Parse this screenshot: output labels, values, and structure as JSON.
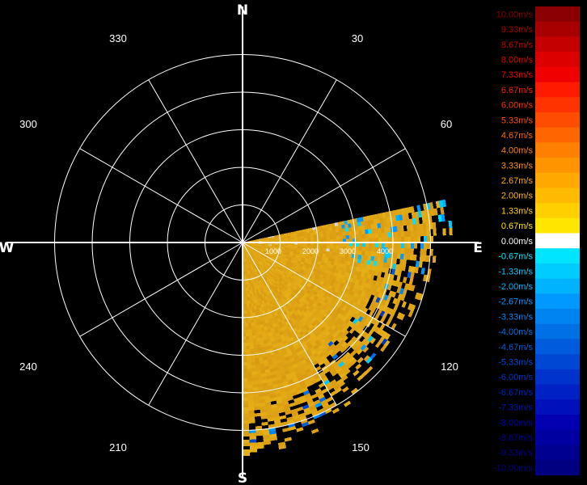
{
  "chart_data": {
    "type": "heatmap",
    "subtype": "polar-ppi-radial-velocity",
    "cardinal_labels": [
      "N",
      "E",
      "S",
      "W"
    ],
    "azimuth_labels": [
      "30",
      "60",
      "120",
      "150",
      "210",
      "240",
      "300",
      "330"
    ],
    "range_labels": [
      "1000",
      "2000",
      "3000",
      "4000"
    ],
    "sector_deg": [
      78,
      180
    ],
    "dominant_value_range_ms": [
      1.33,
      2.67
    ],
    "legend": {
      "unit": "m/s",
      "entries": [
        {
          "label": "10.00m/s",
          "value": 10.0,
          "color": "#8b0000"
        },
        {
          "label": "9.33m/s",
          "value": 9.33,
          "color": "#a80000"
        },
        {
          "label": "8.67m/s",
          "value": 8.67,
          "color": "#c40000"
        },
        {
          "label": "8.00m/s",
          "value": 8.0,
          "color": "#dc0000"
        },
        {
          "label": "7.33m/s",
          "value": 7.33,
          "color": "#f00000"
        },
        {
          "label": "6.67m/s",
          "value": 6.67,
          "color": "#ff1a00"
        },
        {
          "label": "6.00m/s",
          "value": 6.0,
          "color": "#ff3300"
        },
        {
          "label": "5.33m/s",
          "value": 5.33,
          "color": "#ff4d00"
        },
        {
          "label": "4.67m/s",
          "value": 4.67,
          "color": "#ff6600"
        },
        {
          "label": "4.00m/s",
          "value": 4.0,
          "color": "#ff8000"
        },
        {
          "label": "3.33m/s",
          "value": 3.33,
          "color": "#ff9400"
        },
        {
          "label": "2.67m/s",
          "value": 2.67,
          "color": "#ffa800"
        },
        {
          "label": "2.00m/s",
          "value": 2.0,
          "color": "#ffbb00"
        },
        {
          "label": "1.33m/s",
          "value": 1.33,
          "color": "#ffcf00"
        },
        {
          "label": "0.67m/s",
          "value": 0.67,
          "color": "#ffe600"
        },
        {
          "label": "0.00m/s",
          "value": 0.0,
          "color": "#ffffff"
        },
        {
          "label": "-0.67m/s",
          "value": -0.67,
          "color": "#00e5ff"
        },
        {
          "label": "-1.33m/s",
          "value": -1.33,
          "color": "#00ccff"
        },
        {
          "label": "-2.00m/s",
          "value": -2.0,
          "color": "#00b3ff"
        },
        {
          "label": "-2.67m/s",
          "value": -2.67,
          "color": "#0099ff"
        },
        {
          "label": "-3.33m/s",
          "value": -3.33,
          "color": "#0085f0"
        },
        {
          "label": "-4.00m/s",
          "value": -4.0,
          "color": "#0070e6"
        },
        {
          "label": "-4.67m/s",
          "value": -4.67,
          "color": "#005cdc"
        },
        {
          "label": "-5.33m/s",
          "value": -5.33,
          "color": "#0048d4"
        },
        {
          "label": "-6.00m/s",
          "value": -6.0,
          "color": "#0033cc"
        },
        {
          "label": "-6.67m/s",
          "value": -6.67,
          "color": "#0022c4"
        },
        {
          "label": "-7.33m/s",
          "value": -7.33,
          "color": "#0011bb"
        },
        {
          "label": "-8.00m/s",
          "value": -8.0,
          "color": "#0000b0"
        },
        {
          "label": "-8.67m/s",
          "value": -8.67,
          "color": "#0000a0"
        },
        {
          "label": "-9.33m/s",
          "value": -9.33,
          "color": "#000090"
        },
        {
          "label": "-10.00m/s",
          "value": -10.0,
          "color": "#000080"
        }
      ]
    }
  }
}
